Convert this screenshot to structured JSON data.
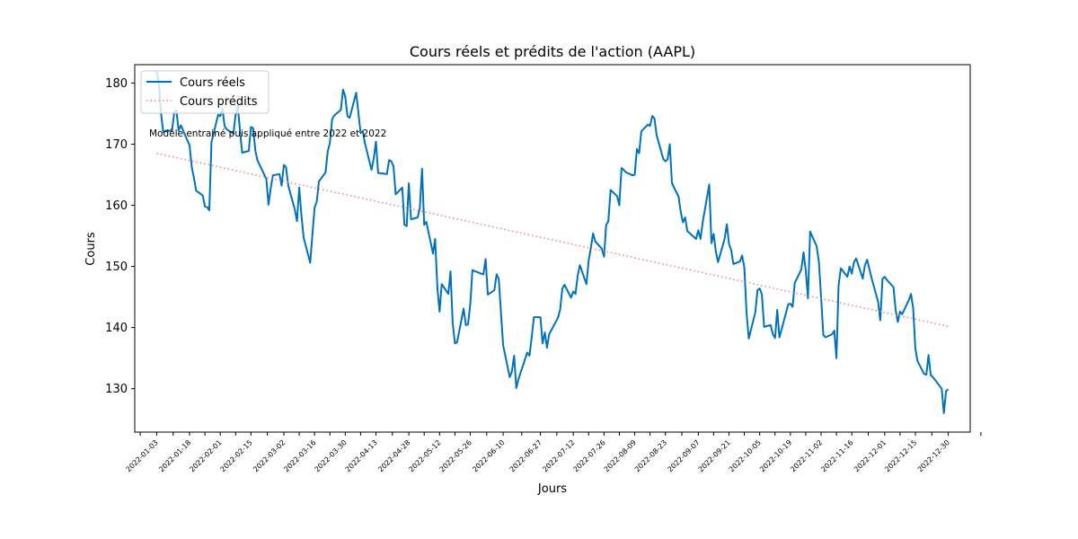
{
  "chart_data": {
    "type": "line",
    "title": "Cours réels et prédits de l'action (AAPL)",
    "xlabel": "Jours",
    "ylabel": "Cours",
    "xlim": [
      "2021-12-24",
      "2023-01-09"
    ],
    "ylim": [
      122.9,
      183.0
    ],
    "yticks": [
      130,
      140,
      150,
      160,
      170,
      180
    ],
    "xticks": [
      "2022-01-03",
      "2022-01-18",
      "2022-02-01",
      "2022-02-15",
      "2022-03-02",
      "2022-03-16",
      "2022-03-30",
      "2022-04-13",
      "2022-04-28",
      "2022-05-12",
      "2022-05-26",
      "2022-06-10",
      "2022-06-27",
      "2022-07-12",
      "2022-07-26",
      "2022-08-09",
      "2022-08-23",
      "2022-09-07",
      "2022-09-21",
      "2022-10-05",
      "2022-10-19",
      "2022-11-02",
      "2022-11-16",
      "2022-12-01",
      "2022-12-15",
      "2022-12-30"
    ],
    "legend": {
      "placement": "top-left"
    },
    "annotation": "Modèle entrainé puis appliqué entre 2022 et 2022",
    "colors": {
      "actual": "#0072BD",
      "predicted": "#F08080"
    },
    "series": [
      {
        "name": "Cours réels",
        "style": "solid",
        "points": [
          [
            "2022-01-03",
            182.0
          ],
          [
            "2022-01-04",
            179.7
          ],
          [
            "2022-01-05",
            175.0
          ],
          [
            "2022-01-06",
            172.0
          ],
          [
            "2022-01-07",
            172.2
          ],
          [
            "2022-01-10",
            172.2
          ],
          [
            "2022-01-11",
            175.1
          ],
          [
            "2022-01-12",
            175.5
          ],
          [
            "2022-01-13",
            172.2
          ],
          [
            "2022-01-14",
            173.1
          ],
          [
            "2022-01-18",
            169.8
          ],
          [
            "2022-01-19",
            166.2
          ],
          [
            "2022-01-20",
            164.5
          ],
          [
            "2022-01-21",
            162.4
          ],
          [
            "2022-01-24",
            161.6
          ],
          [
            "2022-01-25",
            159.8
          ],
          [
            "2022-01-26",
            159.7
          ],
          [
            "2022-01-27",
            159.2
          ],
          [
            "2022-01-28",
            170.3
          ],
          [
            "2022-01-31",
            174.8
          ],
          [
            "2022-02-01",
            174.6
          ],
          [
            "2022-02-02",
            175.8
          ],
          [
            "2022-02-03",
            172.9
          ],
          [
            "2022-02-04",
            172.4
          ],
          [
            "2022-02-07",
            171.7
          ],
          [
            "2022-02-08",
            174.8
          ],
          [
            "2022-02-09",
            176.3
          ],
          [
            "2022-02-10",
            172.1
          ],
          [
            "2022-02-11",
            168.6
          ],
          [
            "2022-02-14",
            168.9
          ],
          [
            "2022-02-15",
            172.8
          ],
          [
            "2022-02-16",
            172.6
          ],
          [
            "2022-02-17",
            168.9
          ],
          [
            "2022-02-18",
            167.3
          ],
          [
            "2022-02-22",
            164.3
          ],
          [
            "2022-02-23",
            160.1
          ],
          [
            "2022-02-24",
            162.7
          ],
          [
            "2022-02-25",
            164.9
          ],
          [
            "2022-02-28",
            165.1
          ],
          [
            "2022-03-01",
            163.2
          ],
          [
            "2022-03-02",
            166.6
          ],
          [
            "2022-03-03",
            166.2
          ],
          [
            "2022-03-04",
            163.2
          ],
          [
            "2022-03-07",
            159.3
          ],
          [
            "2022-03-08",
            157.4
          ],
          [
            "2022-03-09",
            162.9
          ],
          [
            "2022-03-10",
            158.5
          ],
          [
            "2022-03-11",
            154.7
          ],
          [
            "2022-03-14",
            150.6
          ],
          [
            "2022-03-15",
            155.1
          ],
          [
            "2022-03-16",
            159.6
          ],
          [
            "2022-03-17",
            160.6
          ],
          [
            "2022-03-18",
            163.9
          ],
          [
            "2022-03-21",
            165.4
          ],
          [
            "2022-03-22",
            168.8
          ],
          [
            "2022-03-23",
            170.2
          ],
          [
            "2022-03-24",
            174.1
          ],
          [
            "2022-03-25",
            174.7
          ],
          [
            "2022-03-28",
            175.6
          ],
          [
            "2022-03-29",
            178.9
          ],
          [
            "2022-03-30",
            177.8
          ],
          [
            "2022-03-31",
            174.6
          ],
          [
            "2022-04-01",
            174.3
          ],
          [
            "2022-04-04",
            178.4
          ],
          [
            "2022-04-05",
            175.1
          ],
          [
            "2022-04-06",
            171.8
          ],
          [
            "2022-04-07",
            172.1
          ],
          [
            "2022-04-08",
            170.1
          ],
          [
            "2022-04-11",
            165.8
          ],
          [
            "2022-04-12",
            167.7
          ],
          [
            "2022-04-13",
            170.4
          ],
          [
            "2022-04-14",
            165.3
          ],
          [
            "2022-04-18",
            165.1
          ],
          [
            "2022-04-19",
            167.4
          ],
          [
            "2022-04-20",
            167.2
          ],
          [
            "2022-04-21",
            166.4
          ],
          [
            "2022-04-22",
            161.8
          ],
          [
            "2022-04-25",
            162.9
          ],
          [
            "2022-04-26",
            156.8
          ],
          [
            "2022-04-27",
            156.6
          ],
          [
            "2022-04-28",
            163.6
          ],
          [
            "2022-04-29",
            157.7
          ],
          [
            "2022-05-02",
            158.0
          ],
          [
            "2022-05-03",
            159.5
          ],
          [
            "2022-05-04",
            166.0
          ],
          [
            "2022-05-05",
            156.8
          ],
          [
            "2022-05-06",
            157.3
          ],
          [
            "2022-05-09",
            152.1
          ],
          [
            "2022-05-10",
            154.5
          ],
          [
            "2022-05-11",
            146.5
          ],
          [
            "2022-05-12",
            142.6
          ],
          [
            "2022-05-13",
            147.1
          ],
          [
            "2022-05-16",
            145.5
          ],
          [
            "2022-05-17",
            149.2
          ],
          [
            "2022-05-18",
            140.8
          ],
          [
            "2022-05-19",
            137.4
          ],
          [
            "2022-05-20",
            137.6
          ],
          [
            "2022-05-23",
            143.1
          ],
          [
            "2022-05-24",
            140.4
          ],
          [
            "2022-05-25",
            140.5
          ],
          [
            "2022-05-26",
            143.8
          ],
          [
            "2022-05-27",
            149.4
          ],
          [
            "2022-05-31",
            148.8
          ],
          [
            "2022-06-01",
            148.7
          ],
          [
            "2022-06-02",
            151.2
          ],
          [
            "2022-06-03",
            145.4
          ],
          [
            "2022-06-06",
            146.1
          ],
          [
            "2022-06-07",
            148.7
          ],
          [
            "2022-06-08",
            148.0
          ],
          [
            "2022-06-09",
            142.6
          ],
          [
            "2022-06-10",
            137.1
          ],
          [
            "2022-06-13",
            131.9
          ],
          [
            "2022-06-14",
            132.8
          ],
          [
            "2022-06-15",
            135.4
          ],
          [
            "2022-06-16",
            130.1
          ],
          [
            "2022-06-17",
            131.6
          ],
          [
            "2022-06-21",
            135.9
          ],
          [
            "2022-06-22",
            135.4
          ],
          [
            "2022-06-23",
            138.3
          ],
          [
            "2022-06-24",
            141.7
          ],
          [
            "2022-06-27",
            141.7
          ],
          [
            "2022-06-28",
            137.4
          ],
          [
            "2022-06-29",
            139.2
          ],
          [
            "2022-06-30",
            136.7
          ],
          [
            "2022-07-01",
            138.9
          ],
          [
            "2022-07-05",
            141.6
          ],
          [
            "2022-07-06",
            142.9
          ],
          [
            "2022-07-07",
            146.4
          ],
          [
            "2022-07-08",
            147.0
          ],
          [
            "2022-07-11",
            144.9
          ],
          [
            "2022-07-12",
            145.9
          ],
          [
            "2022-07-13",
            145.5
          ],
          [
            "2022-07-14",
            148.5
          ],
          [
            "2022-07-15",
            150.2
          ],
          [
            "2022-07-18",
            147.1
          ],
          [
            "2022-07-19",
            151.0
          ],
          [
            "2022-07-20",
            153.0
          ],
          [
            "2022-07-21",
            155.4
          ],
          [
            "2022-07-22",
            154.1
          ],
          [
            "2022-07-25",
            152.9
          ],
          [
            "2022-07-26",
            151.6
          ],
          [
            "2022-07-27",
            156.8
          ],
          [
            "2022-07-28",
            157.4
          ],
          [
            "2022-07-29",
            162.5
          ],
          [
            "2022-08-01",
            161.5
          ],
          [
            "2022-08-02",
            160.0
          ],
          [
            "2022-08-03",
            166.1
          ],
          [
            "2022-08-04",
            165.8
          ],
          [
            "2022-08-05",
            165.4
          ],
          [
            "2022-08-08",
            164.9
          ],
          [
            "2022-08-09",
            165.0
          ],
          [
            "2022-08-10",
            169.2
          ],
          [
            "2022-08-11",
            168.5
          ],
          [
            "2022-08-12",
            172.1
          ],
          [
            "2022-08-15",
            173.2
          ],
          [
            "2022-08-16",
            173.0
          ],
          [
            "2022-08-17",
            174.6
          ],
          [
            "2022-08-18",
            174.2
          ],
          [
            "2022-08-19",
            171.5
          ],
          [
            "2022-08-22",
            167.6
          ],
          [
            "2022-08-23",
            167.2
          ],
          [
            "2022-08-24",
            167.5
          ],
          [
            "2022-08-25",
            170.0
          ],
          [
            "2022-08-26",
            163.6
          ],
          [
            "2022-08-29",
            161.4
          ],
          [
            "2022-08-30",
            158.9
          ],
          [
            "2022-08-31",
            157.2
          ],
          [
            "2022-09-01",
            158.0
          ],
          [
            "2022-09-02",
            155.8
          ],
          [
            "2022-09-06",
            154.5
          ],
          [
            "2022-09-07",
            155.9
          ],
          [
            "2022-09-08",
            154.5
          ],
          [
            "2022-09-09",
            157.2
          ],
          [
            "2022-09-12",
            163.4
          ],
          [
            "2022-09-13",
            153.8
          ],
          [
            "2022-09-14",
            155.3
          ],
          [
            "2022-09-15",
            152.4
          ],
          [
            "2022-09-16",
            150.7
          ],
          [
            "2022-09-19",
            154.5
          ],
          [
            "2022-09-20",
            156.9
          ],
          [
            "2022-09-21",
            153.7
          ],
          [
            "2022-09-22",
            152.7
          ],
          [
            "2022-09-23",
            150.4
          ],
          [
            "2022-09-26",
            150.8
          ],
          [
            "2022-09-27",
            151.8
          ],
          [
            "2022-09-28",
            149.8
          ],
          [
            "2022-09-29",
            142.5
          ],
          [
            "2022-09-30",
            138.2
          ],
          [
            "2022-10-03",
            142.5
          ],
          [
            "2022-10-04",
            146.1
          ],
          [
            "2022-10-05",
            146.4
          ],
          [
            "2022-10-06",
            145.4
          ],
          [
            "2022-10-07",
            140.1
          ],
          [
            "2022-10-10",
            140.4
          ],
          [
            "2022-10-11",
            138.9
          ],
          [
            "2022-10-12",
            138.3
          ],
          [
            "2022-10-13",
            142.9
          ],
          [
            "2022-10-14",
            138.4
          ],
          [
            "2022-10-17",
            142.4
          ],
          [
            "2022-10-18",
            143.8
          ],
          [
            "2022-10-19",
            143.9
          ],
          [
            "2022-10-20",
            143.4
          ],
          [
            "2022-10-21",
            147.3
          ],
          [
            "2022-10-24",
            149.5
          ],
          [
            "2022-10-25",
            152.3
          ],
          [
            "2022-10-26",
            149.4
          ],
          [
            "2022-10-27",
            144.8
          ],
          [
            "2022-10-28",
            155.7
          ],
          [
            "2022-10-31",
            153.3
          ],
          [
            "2022-11-01",
            150.7
          ],
          [
            "2022-11-02",
            145.0
          ],
          [
            "2022-11-03",
            138.8
          ],
          [
            "2022-11-04",
            138.4
          ],
          [
            "2022-11-07",
            138.9
          ],
          [
            "2022-11-08",
            139.5
          ],
          [
            "2022-11-09",
            135.0
          ],
          [
            "2022-11-10",
            146.9
          ],
          [
            "2022-11-11",
            149.7
          ],
          [
            "2022-11-14",
            148.3
          ],
          [
            "2022-11-15",
            150.0
          ],
          [
            "2022-11-16",
            148.8
          ],
          [
            "2022-11-17",
            150.7
          ],
          [
            "2022-11-18",
            151.3
          ],
          [
            "2022-11-21",
            148.0
          ],
          [
            "2022-11-22",
            150.2
          ],
          [
            "2022-11-23",
            151.1
          ],
          [
            "2022-11-25",
            148.1
          ],
          [
            "2022-11-28",
            144.2
          ],
          [
            "2022-11-29",
            141.2
          ],
          [
            "2022-11-30",
            148.0
          ],
          [
            "2022-12-01",
            148.3
          ],
          [
            "2022-12-02",
            147.8
          ],
          [
            "2022-12-05",
            146.6
          ],
          [
            "2022-12-06",
            142.9
          ],
          [
            "2022-12-07",
            140.9
          ],
          [
            "2022-12-08",
            142.6
          ],
          [
            "2022-12-09",
            142.2
          ],
          [
            "2022-12-12",
            144.5
          ],
          [
            "2022-12-13",
            145.5
          ],
          [
            "2022-12-14",
            143.2
          ],
          [
            "2022-12-15",
            136.5
          ],
          [
            "2022-12-16",
            134.5
          ],
          [
            "2022-12-19",
            132.4
          ],
          [
            "2022-12-20",
            132.3
          ],
          [
            "2022-12-21",
            135.5
          ],
          [
            "2022-12-22",
            132.2
          ],
          [
            "2022-12-23",
            131.9
          ],
          [
            "2022-12-27",
            130.0
          ],
          [
            "2022-12-28",
            126.0
          ],
          [
            "2022-12-29",
            129.6
          ],
          [
            "2022-12-30",
            129.9
          ]
        ]
      },
      {
        "name": "Cours prédits",
        "style": "dotted",
        "points": [
          [
            "2022-01-03",
            168.5
          ],
          [
            "2022-12-30",
            140.2
          ]
        ]
      }
    ]
  }
}
